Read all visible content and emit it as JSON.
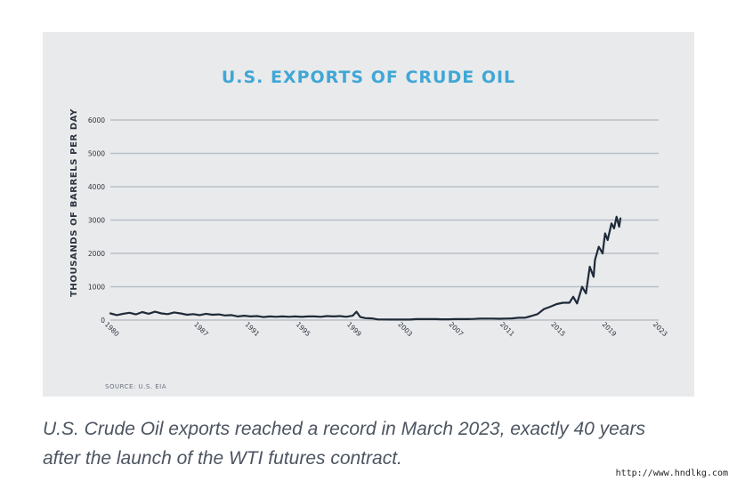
{
  "chart_data": {
    "type": "line",
    "title": "U.S. EXPORTS OF CRUDE OIL",
    "ylabel": "THOUSANDS OF BARRELS PER DAY",
    "xlabel": "",
    "source": "SOURCE: U.S. EIA",
    "ylim": [
      0,
      6000
    ],
    "y_ticks": [
      0,
      1000,
      2000,
      3000,
      4000,
      5000,
      6000
    ],
    "x_ticks": [
      "1980",
      "1987",
      "1991",
      "1995",
      "1999",
      "2003",
      "2007",
      "2011",
      "2015",
      "2019",
      "2023"
    ],
    "grid": true,
    "line_color": "#1f2a3a",
    "series": [
      {
        "values": [
          [
            "1980",
            200
          ],
          [
            "1980.5",
            150
          ],
          [
            "1981",
            190
          ],
          [
            "1981.5",
            220
          ],
          [
            "1982",
            170
          ],
          [
            "1982.5",
            240
          ],
          [
            "1983",
            190
          ],
          [
            "1983.5",
            250
          ],
          [
            "1984",
            200
          ],
          [
            "1984.5",
            180
          ],
          [
            "1985",
            230
          ],
          [
            "1985.5",
            200
          ],
          [
            "1986",
            160
          ],
          [
            "1986.5",
            180
          ],
          [
            "1987",
            150
          ],
          [
            "1987.5",
            190
          ],
          [
            "1988",
            160
          ],
          [
            "1988.5",
            170
          ],
          [
            "1989",
            140
          ],
          [
            "1989.5",
            150
          ],
          [
            "1990",
            110
          ],
          [
            "1990.5",
            130
          ],
          [
            "1991",
            110
          ],
          [
            "1991.5",
            120
          ],
          [
            "1992",
            90
          ],
          [
            "1992.5",
            110
          ],
          [
            "1993",
            100
          ],
          [
            "1993.5",
            110
          ],
          [
            "1994",
            100
          ],
          [
            "1994.5",
            110
          ],
          [
            "1995",
            95
          ],
          [
            "1995.5",
            110
          ],
          [
            "1996",
            110
          ],
          [
            "1996.5",
            100
          ],
          [
            "1997",
            120
          ],
          [
            "1997.5",
            110
          ],
          [
            "1998",
            120
          ],
          [
            "1998.5",
            100
          ],
          [
            "1999",
            130
          ],
          [
            "1999.3",
            250
          ],
          [
            "1999.6",
            90
          ],
          [
            "2000",
            60
          ],
          [
            "2000.5",
            50
          ],
          [
            "2001",
            20
          ],
          [
            "2001.5",
            20
          ],
          [
            "2002",
            15
          ],
          [
            "2002.5",
            15
          ],
          [
            "2003",
            15
          ],
          [
            "2003.5",
            15
          ],
          [
            "2004",
            30
          ],
          [
            "2004.5",
            30
          ],
          [
            "2005",
            30
          ],
          [
            "2005.5",
            30
          ],
          [
            "2006",
            25
          ],
          [
            "2006.5",
            25
          ],
          [
            "2007",
            30
          ],
          [
            "2007.5",
            30
          ],
          [
            "2008",
            30
          ],
          [
            "2008.5",
            35
          ],
          [
            "2009",
            45
          ],
          [
            "2009.5",
            45
          ],
          [
            "2010",
            45
          ],
          [
            "2010.5",
            40
          ],
          [
            "2011",
            45
          ],
          [
            "2011.5",
            50
          ],
          [
            "2012",
            70
          ],
          [
            "2012.5",
            70
          ],
          [
            "2013",
            120
          ],
          [
            "2013.5",
            180
          ],
          [
            "2014",
            330
          ],
          [
            "2014.5",
            400
          ],
          [
            "2015",
            480
          ],
          [
            "2015.5",
            520
          ],
          [
            "2016",
            520
          ],
          [
            "2016.3",
            700
          ],
          [
            "2016.6",
            500
          ],
          [
            "2017",
            1000
          ],
          [
            "2017.3",
            800
          ],
          [
            "2017.6",
            1600
          ],
          [
            "2017.9",
            1300
          ],
          [
            "2018",
            1800
          ],
          [
            "2018.3",
            2200
          ],
          [
            "2018.6",
            2000
          ],
          [
            "2018.8",
            2600
          ],
          [
            "2019",
            2400
          ],
          [
            "2019.3",
            2900
          ],
          [
            "2019.5",
            2750
          ],
          [
            "2019.7",
            3100
          ],
          [
            "2019.9",
            2800
          ],
          [
            "2020",
            3050
          ]
        ]
      }
    ]
  },
  "caption": {
    "line1": "U.S. Crude Oil exports reached a record in March 2023, exactly 40 years",
    "line2": "after the launch of the WTI futures contract."
  },
  "watermark": "http://www.hndlkg.com"
}
